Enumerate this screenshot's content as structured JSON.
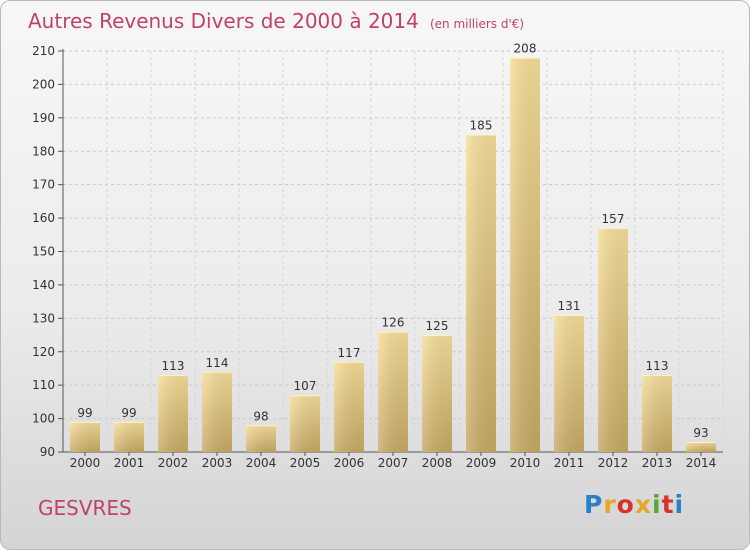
{
  "header": {
    "title": "Autres Revenus Divers de 2000 à 2014",
    "unit": "(en milliers d'€)"
  },
  "footer": {
    "commune": "GESVRES",
    "logo_text": "Proxiti",
    "logo_colors": [
      "#2a7fc8",
      "#e8a52a",
      "#d5342b",
      "#e8a52a",
      "#58a834",
      "#d5342b",
      "#2a7fc8"
    ]
  },
  "colors": {
    "title": "#c0416d",
    "bar_light": "#f6df9a",
    "bar_dark": "#c8a964"
  },
  "chart_data": {
    "type": "bar",
    "title": "Autres Revenus Divers de 2000 à 2014",
    "categories": [
      "2000",
      "2001",
      "2002",
      "2003",
      "2004",
      "2005",
      "2006",
      "2007",
      "2008",
      "2009",
      "2010",
      "2011",
      "2012",
      "2013",
      "2014"
    ],
    "values": [
      99,
      99,
      113,
      114,
      98,
      107,
      117,
      126,
      125,
      185,
      208,
      131,
      157,
      113,
      93
    ],
    "ylim": [
      90,
      210
    ],
    "yticks": [
      90,
      100,
      110,
      120,
      130,
      140,
      150,
      160,
      170,
      180,
      190,
      200,
      210
    ],
    "grid": true,
    "legend": "none"
  }
}
